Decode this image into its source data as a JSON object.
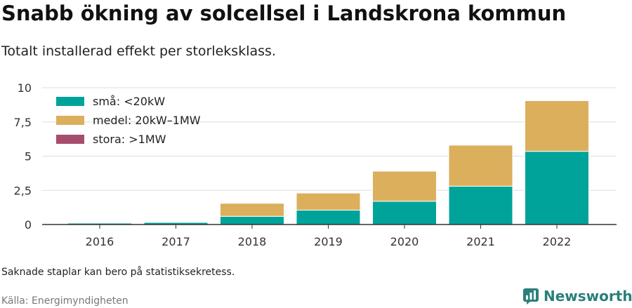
{
  "header": {
    "title": "Snabb ökning av solcellsel i Landskrona kommun",
    "subtitle": "Totalt installerad effekt per storleksklass."
  },
  "footer": {
    "note": "Saknade staplar kan bero på statistiksekretess.",
    "source": "Källa: Energimyndigheten",
    "brand": "Newsworthy"
  },
  "colors": {
    "small": "#00a39a",
    "medium": "#dbaf5c",
    "large": "#a64d6e",
    "grid": "#dddddd",
    "axis": "#333333",
    "brand": "#2b7f7a"
  },
  "chart_data": {
    "type": "bar",
    "stacked": true,
    "categories": [
      "2016",
      "2017",
      "2018",
      "2019",
      "2020",
      "2021",
      "2022"
    ],
    "series": [
      {
        "name": "små: <20kW",
        "values": [
          0.1,
          0.15,
          0.6,
          1.05,
          1.7,
          2.8,
          5.35
        ]
      },
      {
        "name": "medel: 20kW–1MW",
        "values": [
          0,
          0,
          0.95,
          1.25,
          2.2,
          3.0,
          3.7
        ]
      },
      {
        "name": "stora: >1MW",
        "values": [
          0,
          0,
          0,
          0,
          0,
          0,
          0
        ]
      }
    ],
    "yticks": [
      0,
      2.5,
      5,
      7.5,
      10
    ],
    "ytick_labels": [
      "0",
      "2,5",
      "5",
      "7,5",
      "10"
    ],
    "ylim": [
      0,
      10
    ],
    "grid": true,
    "legend_position": "top-left"
  }
}
